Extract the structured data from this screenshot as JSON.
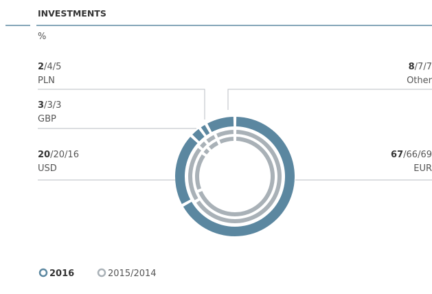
{
  "chart_data": {
    "type": "donut",
    "title": "INVESTMENTS",
    "unit": "%",
    "separator": "/",
    "categories": [
      "EUR",
      "USD",
      "GBP",
      "PLN",
      "Other"
    ],
    "series": [
      {
        "name": "2016",
        "color": "#5b87a0",
        "values": [
          67,
          20,
          3,
          2,
          8
        ]
      },
      {
        "name": "2015",
        "color": "#a9b1b7",
        "values": [
          66,
          20,
          3,
          4,
          7
        ]
      },
      {
        "name": "2014",
        "color": "#a9b1b7",
        "values": [
          69,
          16,
          3,
          5,
          7
        ]
      }
    ]
  }
}
